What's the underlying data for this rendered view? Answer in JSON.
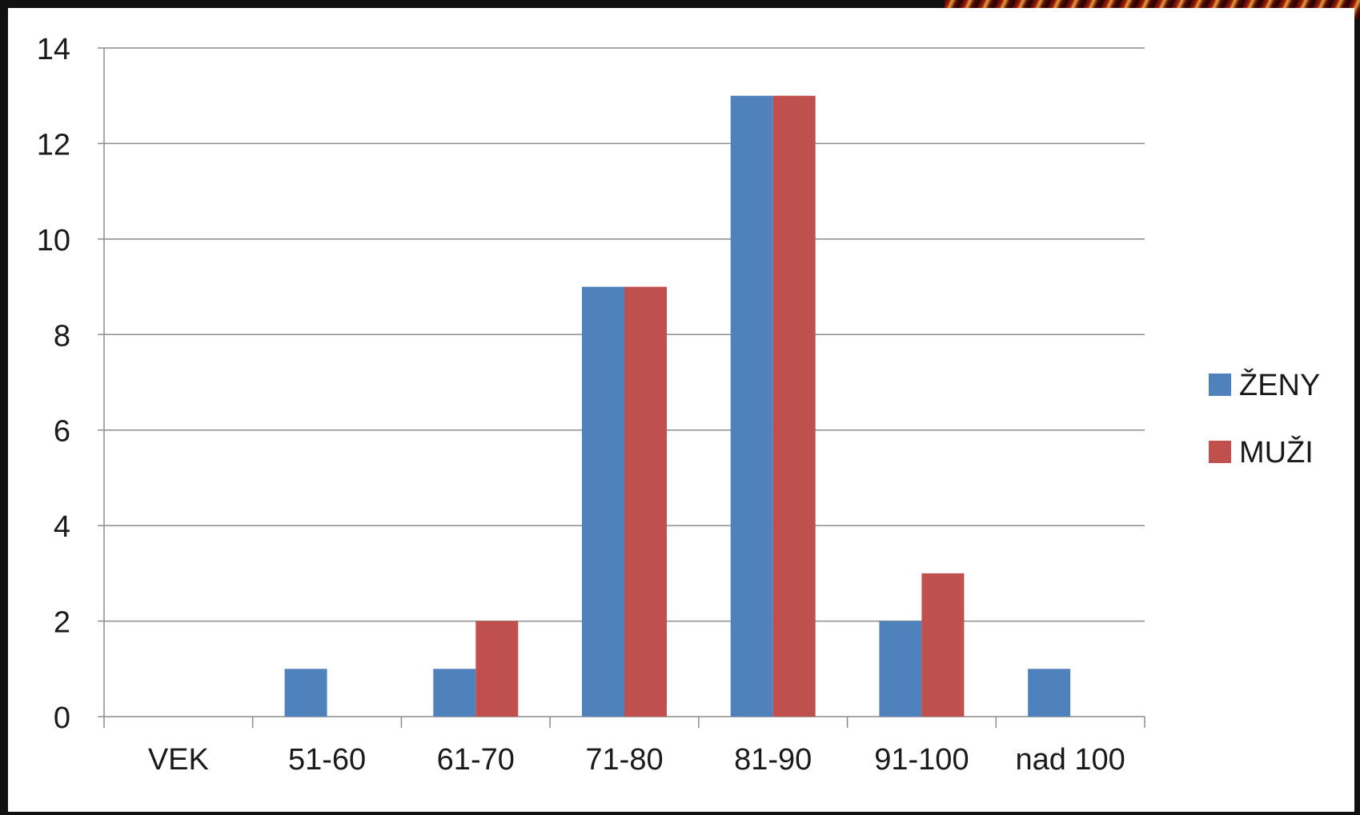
{
  "chart_data": {
    "type": "bar",
    "categories": [
      "VEK",
      "51-60",
      "61-70",
      "71-80",
      "81-90",
      "91-100",
      "nad 100"
    ],
    "series": [
      {
        "name": "ŽENY",
        "values": [
          0,
          1,
          1,
          9,
          13,
          2,
          1
        ],
        "color": "#4F81BD"
      },
      {
        "name": "MUŽI",
        "values": [
          0,
          0,
          2,
          9,
          13,
          3,
          0
        ],
        "color": "#C0504D"
      }
    ],
    "ylim": [
      0,
      14
    ],
    "yticks": [
      0,
      2,
      4,
      6,
      8,
      10,
      12,
      14
    ],
    "grid": true,
    "legend": "right",
    "title": "",
    "xlabel": "",
    "ylabel": ""
  }
}
